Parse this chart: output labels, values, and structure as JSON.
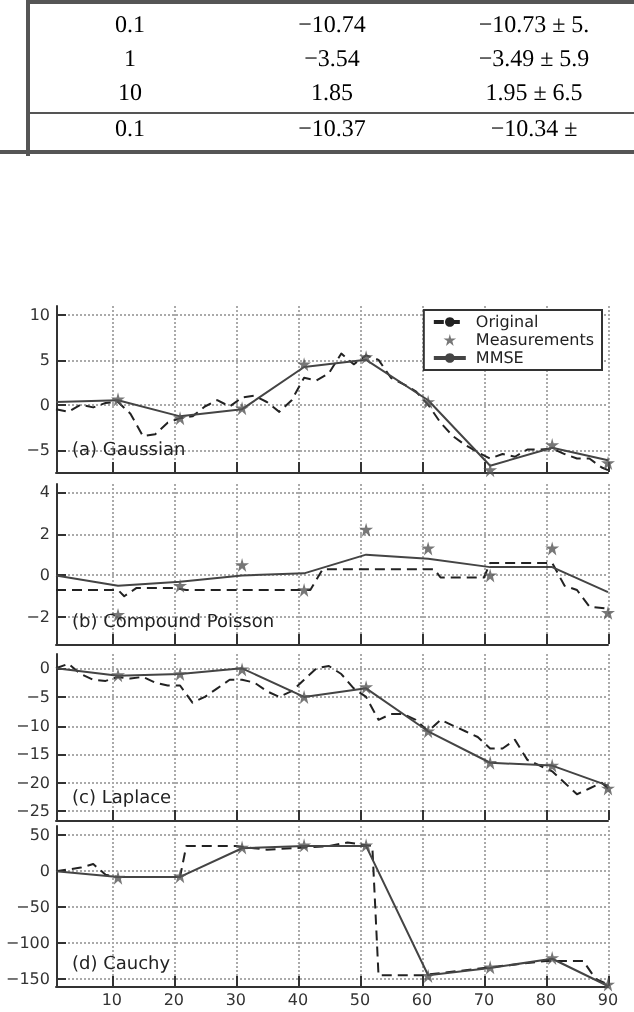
{
  "chart_data": [
    {
      "type": "other",
      "annotations": [
        "0.1",
        "−10.74",
        "−10.73 ± 5.",
        "1",
        "−3.54",
        "−3.49 ± 5.9",
        "10",
        "1.85",
        "1.95 ± 6.5",
        "0.1",
        "−10.37",
        "−10.34 ±"
      ]
    },
    {
      "type": "line",
      "title": "(a) Gaussian",
      "xlim": [
        1,
        90
      ],
      "xticks": [
        10,
        20,
        30,
        40,
        50,
        60,
        70,
        80,
        90
      ],
      "ylim": [
        -7.5,
        11
      ],
      "yticks": [
        -5,
        0,
        5,
        10
      ],
      "grid": true,
      "legend": "top right",
      "tick_labels": "y",
      "series": [
        {
          "name": "Original",
          "type": "line",
          "line_style": "dashed",
          "marker": "none",
          "color": "#222222",
          "x": [
            1,
            3,
            5,
            7,
            9,
            11,
            13,
            15,
            17,
            19,
            21,
            23,
            25,
            27,
            29,
            31,
            33,
            35,
            37,
            39,
            41,
            43,
            45,
            47,
            49,
            51,
            53,
            55,
            57,
            59,
            61,
            63,
            65,
            67,
            69,
            71,
            73,
            75,
            77,
            79,
            81,
            83,
            85,
            87,
            89,
            90
          ],
          "values": [
            -0.5,
            -0.8,
            0,
            -0.3,
            0.2,
            0.3,
            -1,
            -3.5,
            -3.3,
            -2,
            -1.5,
            -1.3,
            -0.2,
            0.5,
            -0.2,
            0.8,
            1,
            0.3,
            -0.8,
            0.5,
            3,
            2.7,
            3.5,
            5.7,
            4.5,
            5.5,
            5,
            3,
            2.3,
            1.5,
            0,
            -2,
            -3.5,
            -4.5,
            -5.3,
            -6,
            -5.5,
            -5.8,
            -5,
            -5,
            -4.9,
            -5.5,
            -6,
            -6,
            -7,
            -7.3
          ]
        },
        {
          "name": "Measurements",
          "type": "scatter",
          "marker": "star",
          "color": "#555555",
          "x": [
            11,
            21,
            31,
            41,
            51,
            61,
            71,
            81,
            90
          ],
          "values": [
            0.6,
            -1.5,
            -0.4,
            4.5,
            5.3,
            0.3,
            -7.3,
            -4.5,
            -6.5
          ]
        },
        {
          "name": "MMSE",
          "type": "line",
          "line_style": "solid",
          "marker": "none",
          "color": "#444444",
          "x": [
            1,
            11,
            21,
            31,
            41,
            51,
            61,
            71,
            81,
            90
          ],
          "values": [
            0.3,
            0.5,
            -1.3,
            -0.5,
            4.2,
            5,
            0.5,
            -6.8,
            -4.8,
            -6.2
          ]
        }
      ]
    },
    {
      "type": "line",
      "title": "(b) Compound Poisson",
      "xlim": [
        1,
        90
      ],
      "xticks": [
        10,
        20,
        30,
        40,
        50,
        60,
        70,
        80,
        90
      ],
      "ylim": [
        -3.3,
        4.4
      ],
      "yticks": [
        -2,
        0,
        2,
        4
      ],
      "grid": true,
      "tick_labels": "y",
      "series": [
        {
          "type": "line",
          "line_style": "dashed",
          "marker": "none",
          "color": "#222222",
          "x": [
            1,
            11,
            12,
            14,
            20,
            22,
            40,
            42,
            44,
            62,
            63,
            70,
            71,
            80,
            81,
            83,
            85,
            87,
            90
          ],
          "values": [
            -0.7,
            -0.7,
            -1,
            -0.6,
            -0.6,
            -0.7,
            -0.7,
            -0.7,
            0.3,
            0.3,
            -0.1,
            -0.1,
            0.6,
            0.6,
            0.6,
            -0.5,
            -0.7,
            -1.5,
            -1.6
          ]
        },
        {
          "type": "scatter",
          "marker": "star",
          "color": "#555555",
          "x": [
            11,
            21,
            31,
            41,
            51,
            61,
            71,
            81,
            90
          ],
          "values": [
            -1.9,
            -0.5,
            0.5,
            -0.7,
            2.2,
            1.3,
            0,
            1.3,
            -1.8
          ]
        },
        {
          "type": "line",
          "line_style": "solid",
          "marker": "none",
          "color": "#444444",
          "x": [
            1,
            11,
            21,
            31,
            41,
            51,
            61,
            71,
            81,
            90
          ],
          "values": [
            0,
            -0.5,
            -0.3,
            0,
            0.1,
            1,
            0.8,
            0.4,
            0.4,
            -0.8
          ]
        }
      ]
    },
    {
      "type": "line",
      "title": "(c) Laplace",
      "xlim": [
        1,
        90
      ],
      "xticks": [
        10,
        20,
        30,
        40,
        50,
        60,
        70,
        80,
        90
      ],
      "ylim": [
        -26.5,
        2.5
      ],
      "yticks": [
        -25,
        -20,
        -15,
        -10,
        -5,
        0
      ],
      "grid": true,
      "tick_labels": "y",
      "series": [
        {
          "type": "line",
          "line_style": "dashed",
          "marker": "none",
          "color": "#222222",
          "x": [
            1,
            3,
            5,
            7,
            9,
            11,
            13,
            15,
            17,
            19,
            21,
            23,
            25,
            27,
            29,
            31,
            33,
            35,
            37,
            39,
            41,
            43,
            45,
            47,
            49,
            51,
            53,
            55,
            57,
            59,
            61,
            63,
            65,
            67,
            69,
            71,
            73,
            75,
            77,
            79,
            81,
            83,
            85,
            87,
            89,
            90
          ],
          "values": [
            0,
            0.8,
            -1,
            -2,
            -2.2,
            -1.5,
            -1.8,
            -1.5,
            -2.5,
            -3,
            -3,
            -6,
            -5,
            -3.5,
            -2,
            -2,
            -2.5,
            -4,
            -5,
            -4,
            -2,
            0,
            0.4,
            -1,
            -3.5,
            -5,
            -9,
            -8,
            -8,
            -9,
            -11,
            -9,
            -10,
            -11,
            -12,
            -14,
            -14,
            -12.5,
            -16,
            -17,
            -18,
            -20,
            -22,
            -21,
            -20,
            -21
          ]
        },
        {
          "type": "scatter",
          "marker": "star",
          "color": "#555555",
          "x": [
            11,
            21,
            31,
            41,
            51,
            61,
            71,
            81,
            90
          ],
          "values": [
            -1.2,
            -1,
            -0.2,
            -5,
            -3.3,
            -11,
            -16.5,
            -17,
            -21
          ]
        },
        {
          "type": "line",
          "line_style": "solid",
          "marker": "none",
          "color": "#444444",
          "x": [
            1,
            11,
            21,
            31,
            41,
            51,
            61,
            71,
            81,
            90
          ],
          "values": [
            0,
            -1.3,
            -1,
            0,
            -5,
            -3.5,
            -11,
            -16.5,
            -17,
            -20.5
          ]
        }
      ]
    },
    {
      "type": "line",
      "title": "(d) Cauchy",
      "xlim": [
        1,
        90
      ],
      "xticks": [
        10,
        20,
        30,
        40,
        50,
        60,
        70,
        80,
        90
      ],
      "ylim": [
        -160,
        63
      ],
      "yticks": [
        -150,
        -100,
        -50,
        0,
        50
      ],
      "grid": true,
      "series": [
        {
          "type": "line",
          "line_style": "dashed",
          "marker": "none",
          "color": "#222222",
          "x": [
            1,
            5,
            7,
            9,
            11,
            21,
            22,
            30,
            35,
            45,
            48,
            52,
            53,
            60,
            70,
            80,
            86,
            88,
            90
          ],
          "values": [
            0,
            5,
            10,
            -5,
            -8,
            -8,
            35,
            35,
            30,
            35,
            40,
            35,
            -145,
            -145,
            -135,
            -125,
            -125,
            -150,
            -158
          ]
        },
        {
          "type": "scatter",
          "marker": "star",
          "color": "#555555",
          "x": [
            11,
            21,
            31,
            41,
            51,
            61,
            71,
            81,
            90
          ],
          "values": [
            -9,
            -7,
            33,
            36,
            36,
            -146,
            -134,
            -121,
            -158
          ]
        },
        {
          "type": "line",
          "line_style": "solid",
          "marker": "none",
          "color": "#444444",
          "x": [
            1,
            11,
            21,
            31,
            41,
            51,
            61,
            71,
            81,
            90
          ],
          "values": [
            0,
            -8,
            -8,
            32,
            35,
            35,
            -145,
            -135,
            -122,
            -160
          ]
        }
      ]
    }
  ]
}
